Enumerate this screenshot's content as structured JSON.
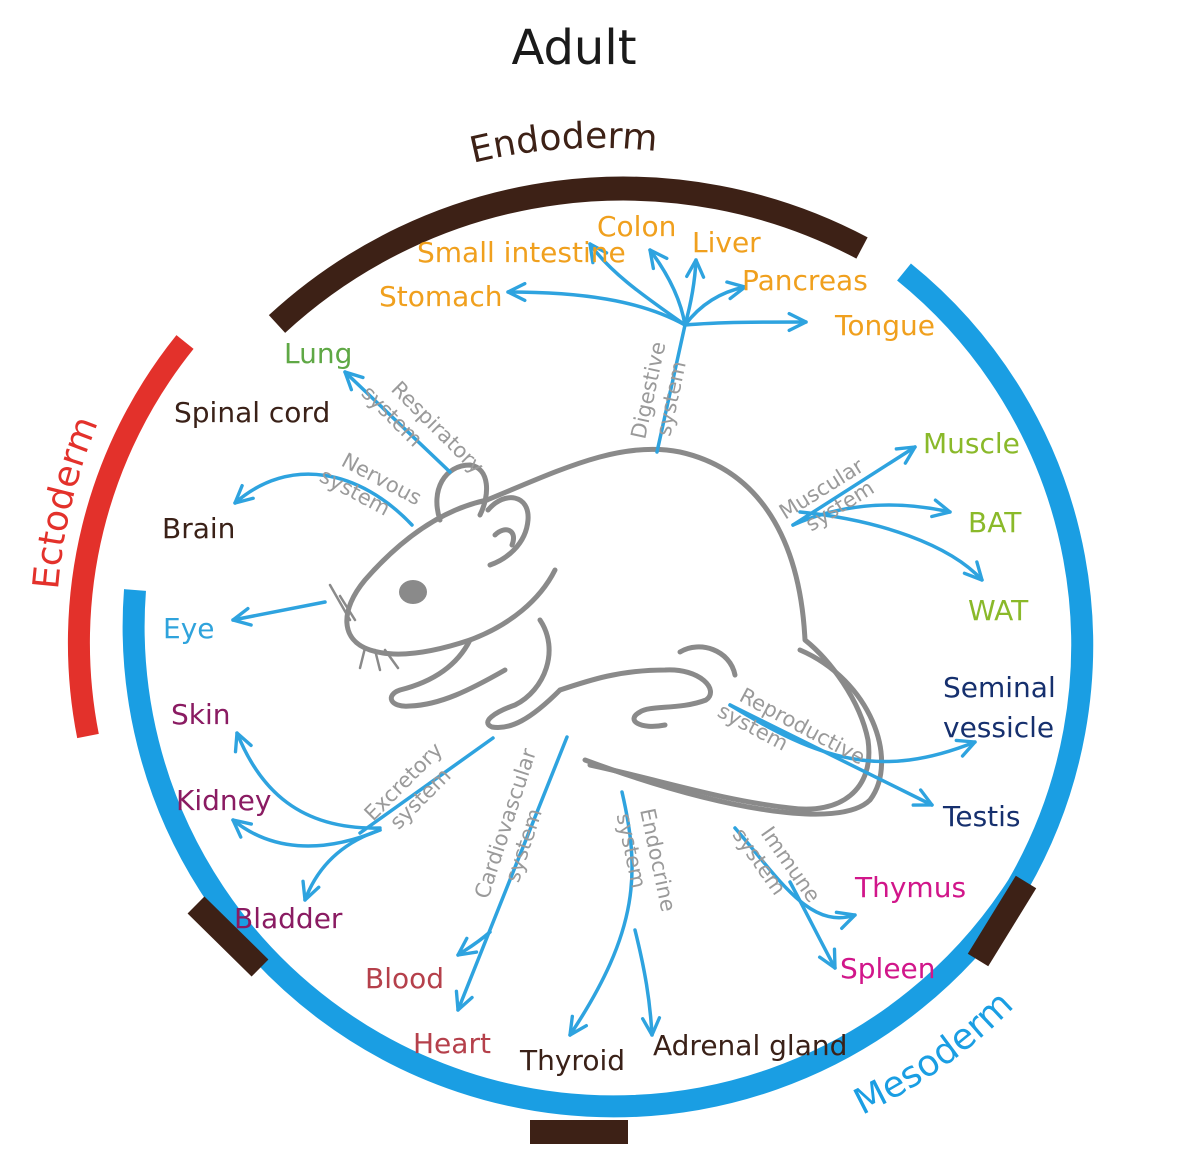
{
  "title": "Adult",
  "germ_layers": {
    "endoderm": "Endoderm",
    "ectoderm": "Ectoderm",
    "mesoderm": "Mesoderm"
  },
  "systems": {
    "digestive": [
      "Digestive",
      "system"
    ],
    "respiratory": [
      "Respiratory",
      "system"
    ],
    "nervous": [
      "Nervous",
      "system"
    ],
    "muscular": [
      "Muscular",
      "system"
    ],
    "reproductive": [
      "Reproductive",
      "system"
    ],
    "excretory": [
      "Excretory",
      "system"
    ],
    "cardiovascular": [
      "Cardiovascular",
      "system"
    ],
    "endocrine": [
      "Endocrine",
      "system"
    ],
    "immune": [
      "Immune",
      "system"
    ]
  },
  "organs": {
    "small_intestine": "Small intestine",
    "colon": "Colon",
    "liver": "Liver",
    "pancreas": "Pancreas",
    "stomach": "Stomach",
    "tongue": "Tongue",
    "lung": "Lung",
    "spinal_cord": "Spinal cord",
    "brain": "Brain",
    "eye": "Eye",
    "skin": "Skin",
    "kidney": "Kidney",
    "bladder": "Bladder",
    "blood": "Blood",
    "heart": "Heart",
    "thyroid": "Thyroid",
    "adrenal_gland": "Adrenal gland",
    "thymus": "Thymus",
    "spleen": "Spleen",
    "testis": "Testis",
    "seminal_vessicle": [
      "Seminal",
      "vessicle"
    ],
    "muscle": "Muscle",
    "bat": "BAT",
    "wat": "WAT"
  },
  "colors": {
    "endoderm_ring": "#3d2116",
    "ectoderm_ring": "#e3312b",
    "mesoderm_ring": "#1a9ee3",
    "arrow": "#2ea3df",
    "system_label": "#9a9a9a",
    "digestive_organs": "#f0a01e",
    "respiratory_organ": "#5fa845",
    "neural_organs": "#3a2118",
    "eye": "#2fa3dc",
    "excretory_organs": "#8a1b62",
    "cardiovascular_organs": "#b5404b",
    "endocrine_organs": "#3a2118",
    "immune_organs": "#d1168a",
    "reproductive_organs": "#16306e",
    "muscular_organs": "#8ab92a"
  }
}
